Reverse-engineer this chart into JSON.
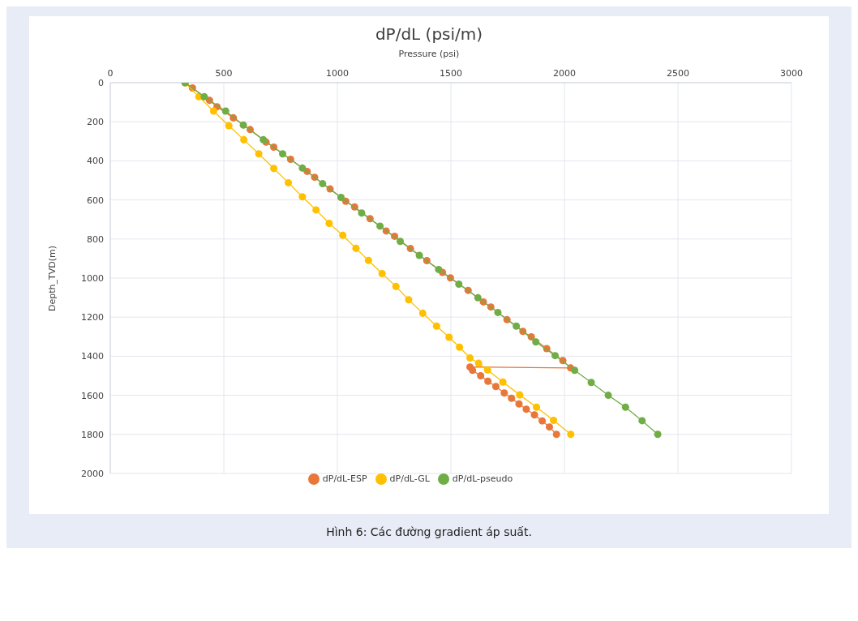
{
  "chart_data": {
    "type": "line",
    "title": "dP/dL (psi/m)",
    "xlabel": "Pressure (psi)",
    "ylabel": "Depth_TVD(m)",
    "xlim": [
      0,
      3000
    ],
    "xticks": [
      0,
      500,
      1000,
      1500,
      2000,
      2500,
      3000
    ],
    "ylim": [
      2000,
      0
    ],
    "yticks": [
      0,
      200,
      400,
      600,
      800,
      1000,
      1200,
      1400,
      1600,
      1800,
      2000
    ],
    "grid": true,
    "legend": "bottom",
    "marker": "circle",
    "line_style": "solid",
    "annotations": [
      "Hình 6: Các đường gradient áp suất."
    ],
    "series": [
      {
        "name": "dP/dL-ESP",
        "color": "#e8773a",
        "x": [
          330,
          362,
          437,
          470,
          542,
          616,
          686,
          720,
          794,
          867,
          900,
          968,
          1037,
          1076,
          1144,
          1215,
          1252,
          1322,
          1394,
          1463,
          1498,
          1576,
          1643,
          1676,
          1747,
          1817,
          1854,
          1922,
          1993,
          2027,
          1584,
          1595,
          1631,
          1663,
          1698,
          1735,
          1767,
          1800,
          1832,
          1868,
          1902,
          1934,
          1965
        ],
        "values": [
          0,
          27,
          90,
          123,
          180,
          240,
          304,
          330,
          392,
          454,
          484,
          544,
          607,
          636,
          696,
          759,
          786,
          849,
          911,
          971,
          999,
          1063,
          1122,
          1148,
          1213,
          1273,
          1301,
          1361,
          1422,
          1460,
          1455,
          1472,
          1500,
          1528,
          1555,
          1588,
          1615,
          1644,
          1671,
          1700,
          1731,
          1762,
          1800
        ]
      },
      {
        "name": "dP/dL-GL",
        "color": "#ffc000",
        "x": [
          330,
          390,
          455,
          522,
          588,
          654,
          720,
          784,
          846,
          906,
          964,
          1024,
          1082,
          1137,
          1197,
          1258,
          1314,
          1376,
          1437,
          1492,
          1538,
          1584,
          1622,
          1661,
          1729,
          1803,
          1877,
          1952,
          2028
        ],
        "values": [
          0,
          72,
          145,
          220,
          292,
          364,
          439,
          512,
          584,
          651,
          720,
          781,
          848,
          910,
          977,
          1043,
          1111,
          1180,
          1246,
          1303,
          1354,
          1409,
          1436,
          1470,
          1532,
          1598,
          1661,
          1728,
          1800
        ]
      },
      {
        "name": "dP/dL-pseudo",
        "color": "#70ad47",
        "x": [
          329,
          414,
          508,
          586,
          674,
          759,
          846,
          935,
          1016,
          1107,
          1188,
          1277,
          1361,
          1446,
          1535,
          1619,
          1707,
          1788,
          1874,
          1959,
          2045,
          2118,
          2193,
          2269,
          2342,
          2411
        ],
        "values": [
          0,
          72,
          145,
          217,
          292,
          364,
          437,
          517,
          587,
          667,
          734,
          812,
          884,
          956,
          1031,
          1101,
          1176,
          1246,
          1327,
          1397,
          1472,
          1534,
          1600,
          1661,
          1730,
          1800
        ]
      }
    ]
  }
}
